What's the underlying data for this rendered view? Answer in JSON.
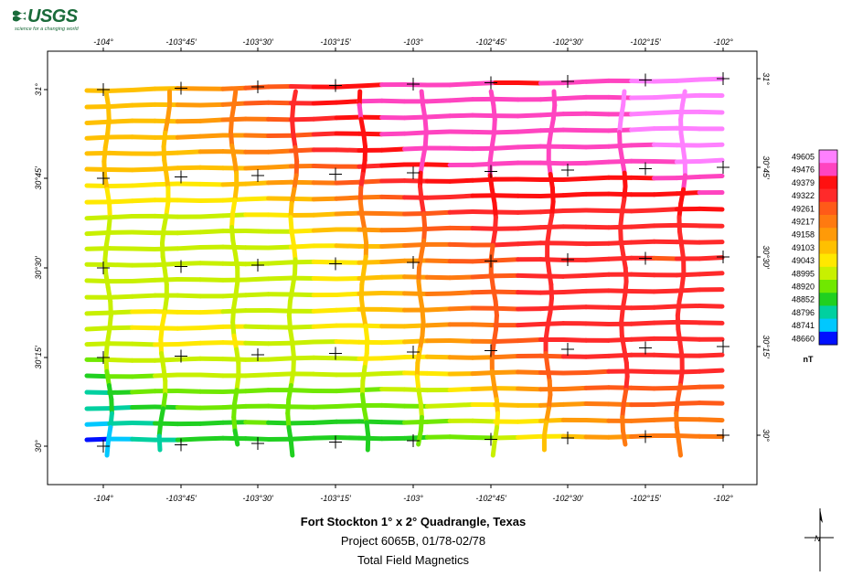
{
  "logo": {
    "text": "USGS",
    "tagline": "science for a changing world",
    "color": "#1a6b3a"
  },
  "map": {
    "lon_ticks": [
      "-104°",
      "-103°45′",
      "-103°30′",
      "-103°15′",
      "-103°",
      "-102°45′",
      "-102°30′",
      "-102°15′",
      "-102°"
    ],
    "lat_ticks": [
      "31°",
      "30°45′",
      "30°30′",
      "30°15′",
      "30°"
    ],
    "flight_lines": {
      "ew_count": 23,
      "ns_count": 9,
      "color_scheme": "rainbow",
      "low_color": "#0000ff",
      "high_color": "#ff80ff"
    }
  },
  "legend": {
    "values": [
      "49605",
      "49476",
      "49379",
      "49322",
      "49261",
      "49217",
      "49158",
      "49103",
      "49043",
      "48995",
      "48920",
      "48852",
      "48796",
      "48741",
      "48660"
    ],
    "colors": [
      "#ff80ff",
      "#ff44c0",
      "#ff1010",
      "#ff2a2a",
      "#ff5a18",
      "#ff7a10",
      "#ff9a08",
      "#ffc000",
      "#ffe800",
      "#c8f000",
      "#70e800",
      "#20d020",
      "#00d0a0",
      "#00c8ff",
      "#0010ff"
    ],
    "unit": "nT"
  },
  "caption": {
    "title": "Fort Stockton 1° x 2° Quadrangle, Texas",
    "project": "Project 6065B, 01/78-02/78",
    "subtitle": "Total Field Magnetics"
  },
  "north_arrow": {
    "label": "N"
  }
}
